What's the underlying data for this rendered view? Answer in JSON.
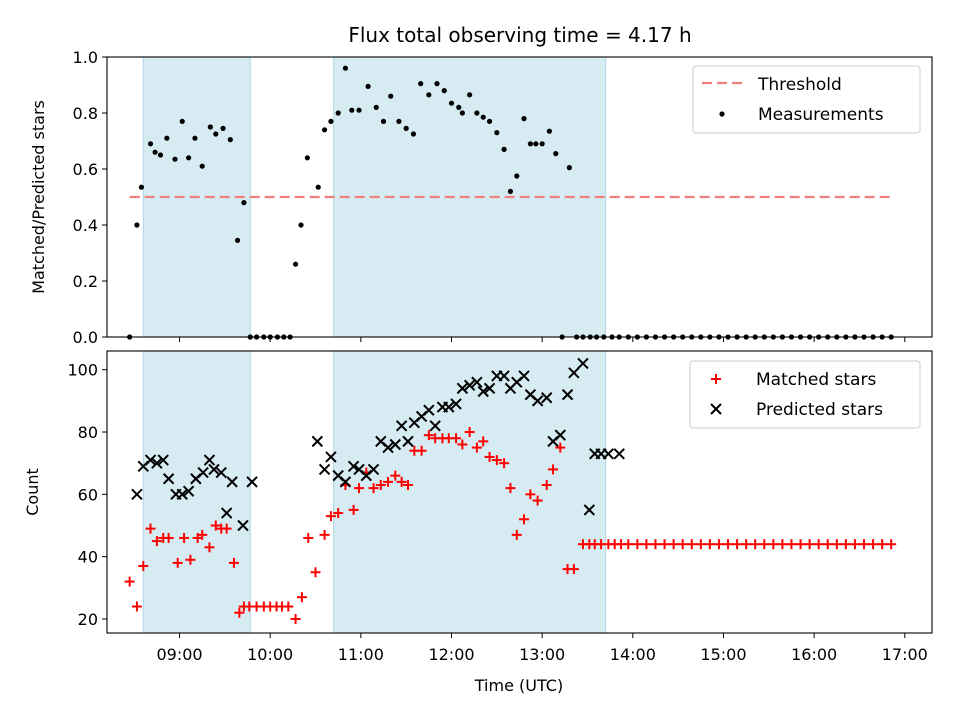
{
  "chart_data": [
    {
      "type": "scatter",
      "title": "Flux total observing time = 4.17 h",
      "xlabel": "",
      "ylabel": "Matched/Predicted stars",
      "xlim": [
        8.2,
        17.3
      ],
      "ylim": [
        0,
        1.0
      ],
      "yticks": [
        0.0,
        0.2,
        0.4,
        0.6,
        0.8,
        1.0
      ],
      "ytick_labels": [
        "0.0",
        "0.2",
        "0.4",
        "0.6",
        "0.8",
        "1.0"
      ],
      "grid": false,
      "legend_position": "top-right",
      "shaded_spans": [
        [
          8.6,
          9.78
        ],
        [
          10.7,
          13.7
        ]
      ],
      "shade_color": "#add8e6",
      "threshold": {
        "name": "Threshold",
        "value": 0.5,
        "x_range": [
          8.45,
          16.85
        ],
        "color": "#f08080"
      },
      "series": [
        {
          "name": "Measurements",
          "color": "#000000",
          "marker": "dot",
          "x": [
            8.45,
            8.53,
            8.58,
            8.68,
            8.73,
            8.79,
            8.86,
            8.95,
            9.03,
            9.1,
            9.17,
            9.25,
            9.34,
            9.4,
            9.48,
            9.56,
            9.64,
            9.71,
            9.78,
            9.85,
            9.93,
            10.0,
            10.08,
            10.15,
            10.22,
            10.28,
            10.34,
            10.41,
            10.53,
            10.6,
            10.67,
            10.75,
            10.83,
            10.9,
            10.98,
            11.08,
            11.17,
            11.25,
            11.33,
            11.42,
            11.5,
            11.58,
            11.66,
            11.75,
            11.84,
            11.92,
            12.0,
            12.08,
            12.12,
            12.2,
            12.28,
            12.35,
            12.42,
            12.5,
            12.58,
            12.65,
            12.72,
            12.8,
            12.87,
            12.93,
            13.0,
            13.08,
            13.15,
            13.22,
            13.3,
            13.38,
            13.45,
            13.53,
            13.6,
            13.68,
            13.77,
            13.85,
            13.95,
            14.05,
            14.15,
            14.25,
            14.35,
            14.45,
            14.55,
            14.65,
            14.75,
            14.85,
            14.95,
            15.05,
            15.15,
            15.25,
            15.35,
            15.45,
            15.55,
            15.65,
            15.75,
            15.85,
            15.95,
            16.05,
            16.15,
            16.25,
            16.35,
            16.45,
            16.55,
            16.65,
            16.75,
            16.85
          ],
          "y": [
            0.0,
            0.4,
            0.535,
            0.69,
            0.66,
            0.65,
            0.71,
            0.635,
            0.77,
            0.64,
            0.71,
            0.61,
            0.75,
            0.725,
            0.745,
            0.705,
            0.345,
            0.48,
            0.0,
            0.0,
            0.0,
            0.0,
            0.0,
            0.0,
            0.0,
            0.26,
            0.4,
            0.64,
            0.535,
            0.74,
            0.77,
            0.8,
            0.96,
            0.81,
            0.81,
            0.895,
            0.82,
            0.77,
            0.86,
            0.77,
            0.745,
            0.725,
            0.905,
            0.865,
            0.905,
            0.88,
            0.835,
            0.82,
            0.8,
            0.865,
            0.8,
            0.785,
            0.77,
            0.73,
            0.67,
            0.52,
            0.575,
            0.78,
            0.69,
            0.69,
            0.69,
            0.735,
            0.655,
            0.0,
            0.605,
            0.0,
            0.0,
            0.0,
            0.0,
            0.0,
            0.0,
            0.0,
            0.0,
            0.0,
            0.0,
            0.0,
            0.0,
            0.0,
            0.0,
            0.0,
            0.0,
            0.0,
            0.0,
            0.0,
            0.0,
            0.0,
            0.0,
            0.0,
            0.0,
            0.0,
            0.0,
            0.0,
            0.0,
            0.0,
            0.0,
            0.0,
            0.0,
            0.0,
            0.0,
            0.0,
            0.0,
            0.0
          ]
        }
      ]
    },
    {
      "type": "scatter",
      "xlabel": "Time (UTC)",
      "ylabel": "Count",
      "xlim": [
        8.2,
        17.3
      ],
      "ylim": [
        15.5,
        106
      ],
      "xticks": [
        9,
        10,
        11,
        12,
        13,
        14,
        15,
        16,
        17
      ],
      "xtick_labels": [
        "09:00",
        "10:00",
        "11:00",
        "12:00",
        "13:00",
        "14:00",
        "15:00",
        "16:00",
        "17:00"
      ],
      "yticks": [
        20,
        40,
        60,
        80,
        100
      ],
      "ytick_labels": [
        "20",
        "40",
        "60",
        "80",
        "100"
      ],
      "grid": false,
      "legend_position": "top-right",
      "shaded_spans": [
        [
          8.6,
          9.78
        ],
        [
          10.7,
          13.7
        ]
      ],
      "shade_color": "#add8e6",
      "series": [
        {
          "name": "Matched stars",
          "color": "#ff0000",
          "marker": "plus",
          "x": [
            8.45,
            8.53,
            8.6,
            8.68,
            8.75,
            8.82,
            8.88,
            8.98,
            9.05,
            9.12,
            9.2,
            9.25,
            9.33,
            9.4,
            9.46,
            9.52,
            9.6,
            9.66,
            9.71,
            9.77,
            9.85,
            9.93,
            10.0,
            10.07,
            10.13,
            10.2,
            10.28,
            10.35,
            10.42,
            10.5,
            10.6,
            10.67,
            10.75,
            10.83,
            10.92,
            10.98,
            11.06,
            11.14,
            11.22,
            11.3,
            11.38,
            11.45,
            11.52,
            11.59,
            11.67,
            11.75,
            11.82,
            11.9,
            11.97,
            12.05,
            12.12,
            12.2,
            12.28,
            12.35,
            12.42,
            12.5,
            12.58,
            12.65,
            12.72,
            12.8,
            12.87,
            12.95,
            13.05,
            13.12,
            13.2,
            13.28,
            13.35,
            13.45,
            13.52,
            13.58,
            13.65,
            13.73,
            13.8,
            13.87,
            13.95,
            14.05,
            14.15,
            14.25,
            14.35,
            14.45,
            14.55,
            14.65,
            14.75,
            14.85,
            14.95,
            15.05,
            15.15,
            15.25,
            15.35,
            15.45,
            15.55,
            15.65,
            15.75,
            15.85,
            15.95,
            16.05,
            16.15,
            16.25,
            16.35,
            16.45,
            16.55,
            16.65,
            16.75,
            16.85
          ],
          "y": [
            32,
            24,
            37,
            49,
            45,
            46,
            46,
            38,
            46,
            39,
            46,
            47,
            43,
            50,
            49,
            49,
            38,
            22,
            24,
            24,
            24,
            24,
            24,
            24,
            24,
            24,
            20,
            27,
            46,
            35,
            47,
            53,
            54,
            63,
            55,
            62,
            67,
            62,
            63,
            64,
            66,
            64,
            63,
            74,
            74,
            79,
            78,
            78,
            78,
            78,
            76,
            80,
            75,
            77,
            72,
            71,
            70,
            62,
            47,
            52,
            60,
            58,
            63,
            68,
            75,
            36,
            36,
            44,
            44,
            44,
            44,
            44,
            44,
            44,
            44,
            44,
            44,
            44,
            44,
            44,
            44,
            44,
            44,
            44,
            44,
            44,
            44,
            44,
            44,
            44,
            44,
            44,
            44,
            44,
            44,
            44,
            44,
            44,
            44,
            44,
            44,
            44,
            44,
            44
          ]
        },
        {
          "name": "Predicted stars",
          "color": "#000000",
          "marker": "cross",
          "x": [
            8.53,
            8.6,
            8.68,
            8.75,
            8.82,
            8.88,
            8.96,
            9.03,
            9.1,
            9.18,
            9.26,
            9.33,
            9.38,
            9.46,
            9.52,
            9.58,
            9.7,
            9.8,
            10.52,
            10.6,
            10.67,
            10.75,
            10.83,
            10.92,
            10.98,
            11.06,
            11.14,
            11.22,
            11.3,
            11.38,
            11.45,
            11.52,
            11.59,
            11.67,
            11.75,
            11.82,
            11.9,
            11.97,
            12.05,
            12.12,
            12.2,
            12.28,
            12.35,
            12.42,
            12.5,
            12.58,
            12.65,
            12.72,
            12.8,
            12.87,
            12.95,
            13.05,
            13.12,
            13.2,
            13.28,
            13.35,
            13.45,
            13.52,
            13.58,
            13.65,
            13.73,
            13.85
          ],
          "y": [
            60,
            69,
            71,
            70,
            71,
            65,
            60,
            60,
            61,
            65,
            67,
            71,
            68,
            67,
            54,
            64,
            50,
            64,
            77,
            68,
            72,
            66,
            64,
            69,
            68,
            66,
            68,
            77,
            75,
            76,
            82,
            77,
            83,
            85,
            87,
            82,
            88,
            88,
            89,
            94,
            95,
            96,
            93,
            94,
            98,
            98,
            94,
            96,
            98,
            92,
            90,
            91,
            77,
            79,
            92,
            99,
            102,
            55,
            73,
            73,
            73,
            73
          ]
        }
      ]
    }
  ]
}
